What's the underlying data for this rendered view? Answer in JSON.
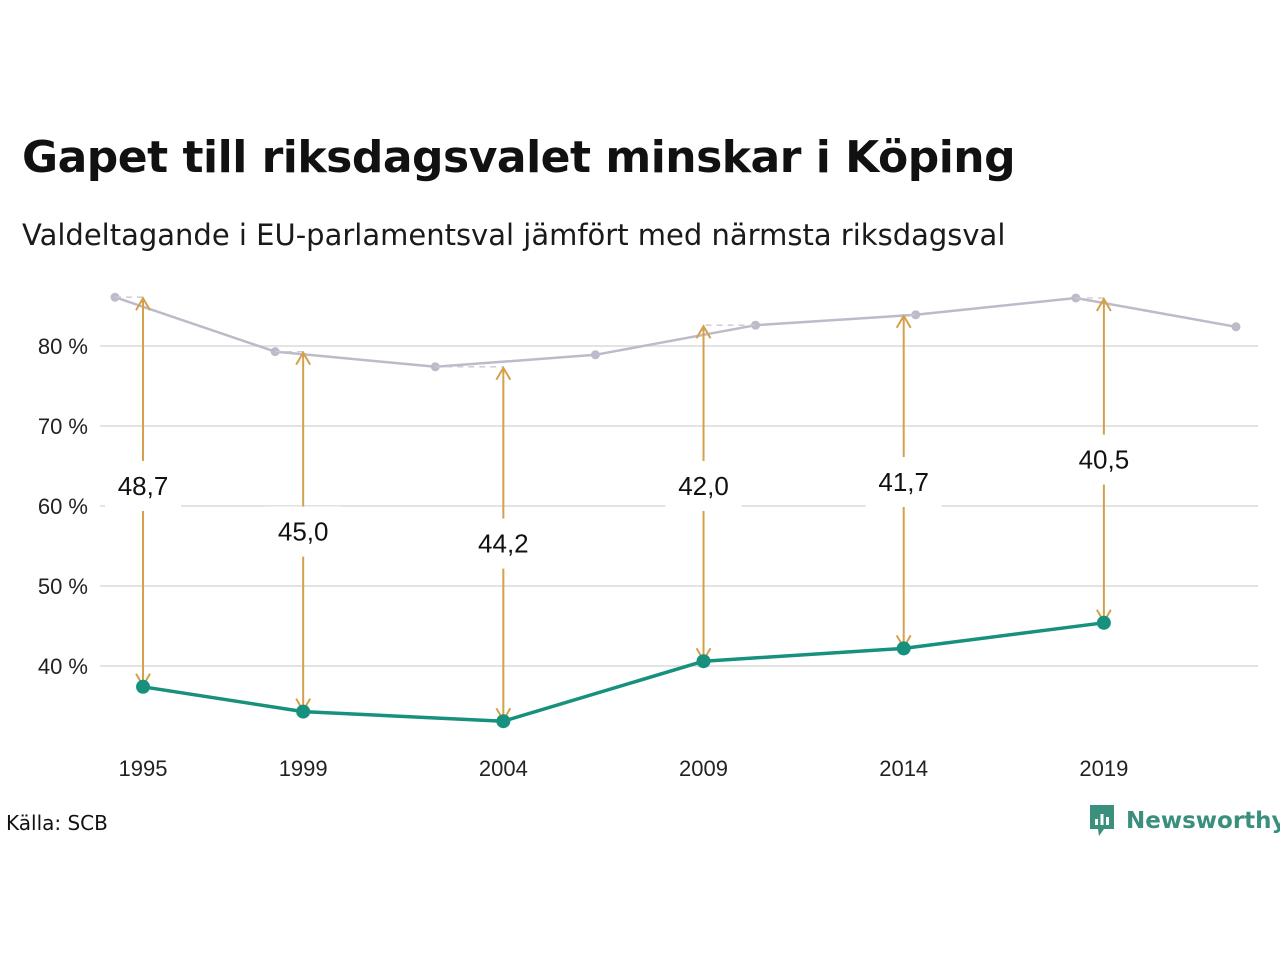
{
  "header": {
    "title": "Gapet till riksdagsvalet minskar i Köping",
    "subtitle": "Valdeltagande i EU-parlamentsval jämfört med närmsta riksdagsval"
  },
  "footer": {
    "source": "Källa: SCB",
    "brand": "Newsworthy"
  },
  "colors": {
    "eu_line": "#17917d",
    "riksdag_line": "#bcbbc9",
    "arrow": "#d4a04c",
    "grid": "#e3e3e3"
  },
  "chart_data": {
    "type": "line",
    "xlim": [
      1994.3,
      2022.5
    ],
    "ylim": [
      30.5,
      87
    ],
    "yticks": [
      40,
      50,
      60,
      70,
      80
    ],
    "ytick_labels": [
      "40 %",
      "50 %",
      "60 %",
      "70 %",
      "80 %"
    ],
    "xticks": [
      1995,
      1999,
      2004,
      2009,
      2014,
      2019
    ],
    "xtick_labels": [
      "1995",
      "1999",
      "2004",
      "2009",
      "2014",
      "2019"
    ],
    "grid": true,
    "series": [
      {
        "x": [
          1994.3,
          1998.3,
          2002.3,
          2006.3,
          2010.3,
          2014.3,
          2018.3,
          2022.3
        ],
        "y": [
          86.1,
          79.3,
          77.4,
          78.9,
          82.6,
          83.9,
          86.0,
          82.4
        ]
      },
      {
        "x": [
          1995,
          1999,
          2004,
          2009,
          2014,
          2019
        ],
        "y": [
          37.4,
          34.3,
          33.1,
          40.6,
          42.2,
          45.4
        ]
      }
    ],
    "gaps": [
      {
        "x": 1995,
        "from": 37.4,
        "to": 86.1,
        "label": "48,7",
        "label_y": 62.5
      },
      {
        "x": 1999,
        "from": 34.3,
        "to": 79.3,
        "label": "45,0",
        "label_y": 56.8
      },
      {
        "x": 2004,
        "from": 33.1,
        "to": 77.4,
        "label": "44,2",
        "label_y": 55.3
      },
      {
        "x": 2009,
        "from": 40.6,
        "to": 82.6,
        "label": "42,0",
        "label_y": 62.5
      },
      {
        "x": 2014,
        "from": 42.2,
        "to": 83.9,
        "label": "41,7",
        "label_y": 63.0
      },
      {
        "x": 2019,
        "from": 45.4,
        "to": 86.0,
        "label": "40,5",
        "label_y": 65.8
      }
    ]
  }
}
